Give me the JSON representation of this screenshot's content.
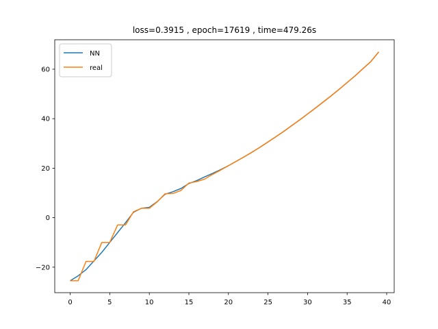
{
  "chart_data": {
    "type": "line",
    "title": "loss=0.3915 , epoch=17619 , time=479.26s",
    "xlabel": "",
    "ylabel": "",
    "xlim": [
      -1.95,
      40.95
    ],
    "ylim": [
      -30.3,
      71.9
    ],
    "xticks": [
      0,
      5,
      10,
      15,
      20,
      25,
      30,
      35,
      40
    ],
    "yticks": [
      -20,
      0,
      20,
      40,
      60
    ],
    "grid": false,
    "legend_position": "top-left",
    "series": [
      {
        "name": "NN",
        "color": "#1f77b4",
        "x": [
          0,
          1,
          2,
          3,
          4,
          5,
          6,
          7,
          8,
          9,
          10,
          11,
          12,
          13,
          14,
          15,
          16,
          17,
          18,
          19,
          20,
          21,
          22,
          23,
          24,
          25,
          26,
          27,
          28,
          29,
          30,
          31,
          32,
          33,
          34,
          35,
          36,
          37,
          38,
          39
        ],
        "y": [
          -25.5,
          -23.5,
          -21.0,
          -17.5,
          -14.0,
          -10.0,
          -6.0,
          -2.0,
          2.2,
          3.8,
          4.2,
          6.5,
          9.5,
          10.5,
          11.8,
          13.8,
          15.0,
          16.5,
          17.9,
          19.4,
          21.0,
          22.8,
          24.6,
          26.5,
          28.5,
          30.6,
          32.7,
          34.9,
          37.2,
          39.5,
          41.9,
          44.3,
          46.8,
          49.3,
          51.9,
          54.6,
          57.3,
          60.2,
          63.1,
          67.0
        ]
      },
      {
        "name": "real",
        "color": "#ff7f0e",
        "x": [
          0,
          1,
          2,
          3,
          4,
          5,
          6,
          7,
          8,
          9,
          10,
          11,
          12,
          13,
          14,
          15,
          16,
          17,
          18,
          19,
          20,
          21,
          22,
          23,
          24,
          25,
          26,
          27,
          28,
          29,
          30,
          31,
          32,
          33,
          34,
          35,
          36,
          37,
          38,
          39
        ],
        "y": [
          -25.5,
          -25.5,
          -17.7,
          -17.7,
          -10.0,
          -10.0,
          -2.9,
          -2.9,
          2.4,
          3.8,
          3.8,
          6.4,
          9.7,
          9.8,
          11.0,
          14.0,
          14.6,
          15.6,
          17.5,
          19.2,
          21.0,
          22.8,
          24.6,
          26.5,
          28.5,
          30.6,
          32.7,
          34.9,
          37.2,
          39.5,
          41.9,
          44.3,
          46.8,
          49.3,
          51.9,
          54.6,
          57.3,
          60.2,
          63.1,
          67.0
        ]
      }
    ]
  }
}
